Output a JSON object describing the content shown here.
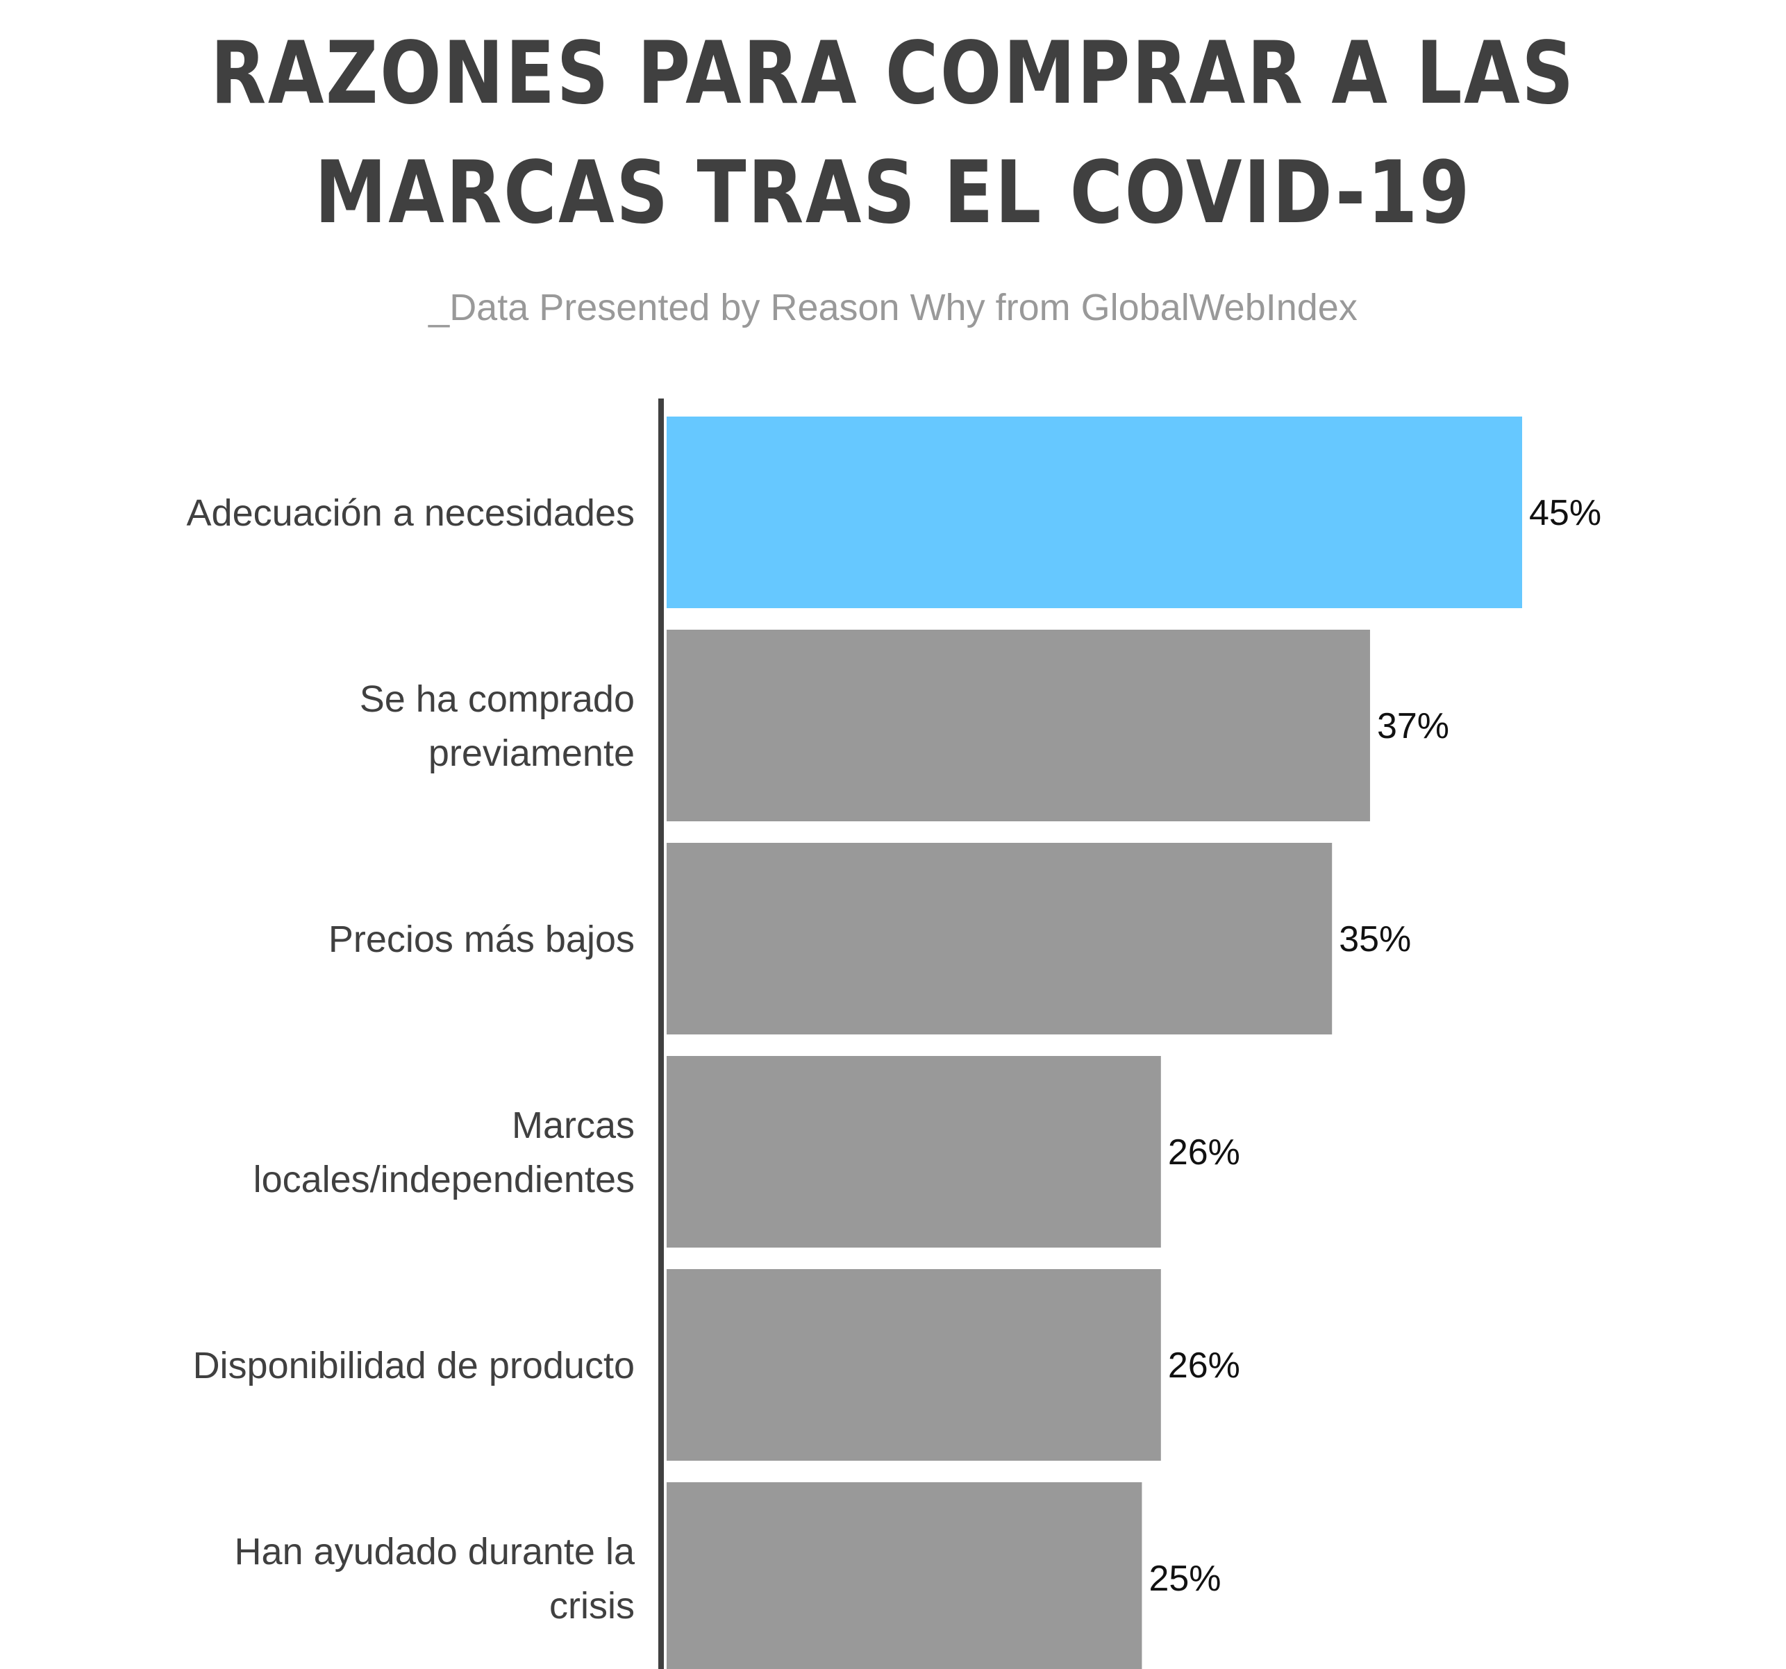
{
  "chart_data": {
    "type": "bar",
    "orientation": "horizontal",
    "title": "RAZONES PARA COMPRAR A LAS MARCAS TRAS EL COVID-19",
    "subtitle": "_Data Presented by Reason Why from GlobalWebIndex",
    "categories": [
      [
        "Adecuación a necesidades"
      ],
      [
        "Se ha comprado",
        "previamente"
      ],
      [
        "Precios más bajos"
      ],
      [
        "Marcas",
        "locales/independientes"
      ],
      [
        "Disponibilidad de producto"
      ],
      [
        "Han ayudado durante la",
        "crisis"
      ]
    ],
    "values": [
      45,
      37,
      35,
      26,
      26,
      25
    ],
    "value_labels": [
      "45%",
      "37%",
      "35%",
      "26%",
      "26%",
      "25%"
    ],
    "unit": "%",
    "xlim": [
      0,
      45
    ],
    "grid": false,
    "legend": "none",
    "highlight_index": 0
  },
  "colors": {
    "title": "#404040",
    "subtitle": "#999999",
    "highlight_bar": "#66c8ff",
    "bar": "#999999",
    "axis": "#404040",
    "category_label": "#404040",
    "value_label": "#111111"
  }
}
